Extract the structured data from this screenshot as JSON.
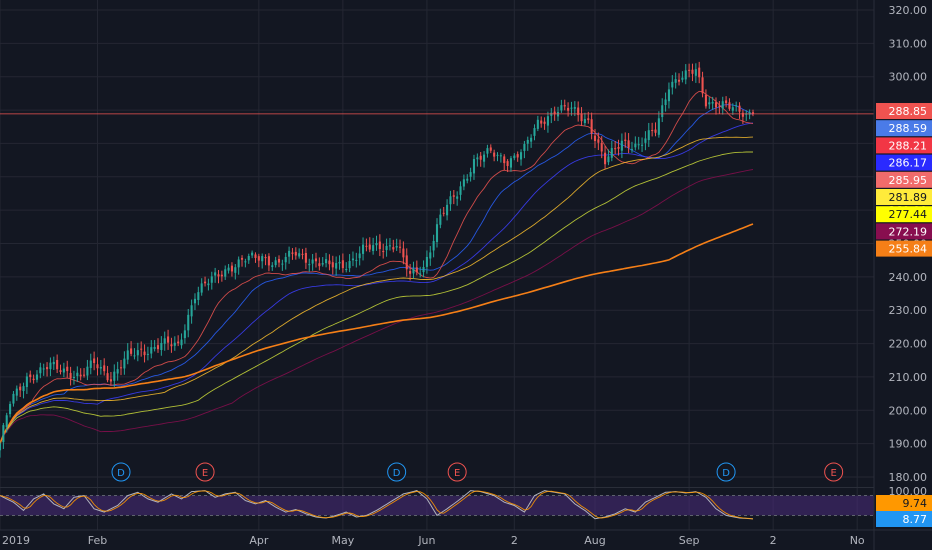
{
  "chart_data": {
    "type": "candlestick",
    "title": "",
    "ylim": [
      177,
      323
    ],
    "y_ticks": [
      180,
      190,
      200,
      210,
      220,
      230,
      240,
      250,
      260,
      270,
      280,
      290,
      300,
      310,
      320
    ],
    "y_tick_labels": [
      "180.00",
      "190.00",
      "200.00",
      "210.00",
      "220.00",
      "230.00",
      "240.00",
      "250.00",
      "260.00",
      "270.00",
      "280.00",
      "290.00",
      "300.00",
      "310.00",
      "320.00"
    ],
    "x_ticks": [
      {
        "label": "2019",
        "day": 0
      },
      {
        "label": "Feb",
        "day": 29
      },
      {
        "label": "Apr",
        "day": 77
      },
      {
        "label": "May",
        "day": 102
      },
      {
        "label": "Jun",
        "day": 127
      },
      {
        "label": "2",
        "day": 153
      },
      {
        "label": "Aug",
        "day": 177
      },
      {
        "label": "Sep",
        "day": 205
      },
      {
        "label": "2",
        "day": 230
      },
      {
        "label": "No",
        "day": 255
      }
    ],
    "price_anchors": [
      [
        0,
        190
      ],
      [
        3,
        202
      ],
      [
        8,
        210
      ],
      [
        15,
        213
      ],
      [
        20,
        212
      ],
      [
        24,
        210
      ],
      [
        28,
        214
      ],
      [
        33,
        210
      ],
      [
        38,
        216
      ],
      [
        43,
        218
      ],
      [
        48,
        220
      ],
      [
        53,
        219
      ],
      [
        58,
        235
      ],
      [
        63,
        239
      ],
      [
        68,
        243
      ],
      [
        73,
        245
      ],
      [
        78,
        246
      ],
      [
        83,
        244
      ],
      [
        88,
        247
      ],
      [
        93,
        245
      ],
      [
        98,
        243
      ],
      [
        103,
        244
      ],
      [
        108,
        248
      ],
      [
        113,
        249
      ],
      [
        118,
        250
      ],
      [
        122,
        240
      ],
      [
        126,
        243
      ],
      [
        131,
        258
      ],
      [
        136,
        265
      ],
      [
        141,
        275
      ],
      [
        146,
        277
      ],
      [
        151,
        275
      ],
      [
        156,
        278
      ],
      [
        160,
        286
      ],
      [
        165,
        290
      ],
      [
        170,
        290
      ],
      [
        175,
        287
      ],
      [
        180,
        274
      ],
      [
        185,
        281
      ],
      [
        190,
        279
      ],
      [
        195,
        284
      ],
      [
        199,
        298
      ],
      [
        204,
        300
      ],
      [
        207,
        302
      ],
      [
        210,
        293
      ],
      [
        215,
        291
      ],
      [
        220,
        290
      ],
      [
        224,
        289
      ]
    ],
    "moving_averages": [
      {
        "label": "288.59",
        "value": 288.59,
        "color": "#2962ff",
        "period": 20
      },
      {
        "label": "286.17",
        "value": 286.17,
        "color": "#3d3fff",
        "period": 30
      },
      {
        "label": "285.95",
        "value": 285.95,
        "color": "#ef5350",
        "period": 10
      },
      {
        "label": "281.89",
        "value": 281.89,
        "color": "#fbc02d",
        "period": 50
      },
      {
        "label": "277.44",
        "value": 277.44,
        "color": "#cddc39",
        "period": 60
      },
      {
        "label": "272.19",
        "value": 272.19,
        "color": "#880e4f",
        "period": 70
      },
      {
        "label": "255.84",
        "value": 255.84,
        "color": "#f57f17",
        "period": 200
      }
    ],
    "last_price": {
      "label": "288.85",
      "value": 288.85
    },
    "secondary_tag": {
      "label": "288.21",
      "value": 288.21
    },
    "events": [
      {
        "label": "D",
        "day": 36,
        "type": "dividend"
      },
      {
        "label": "E",
        "day": 61,
        "type": "earnings"
      },
      {
        "label": "D",
        "day": 118,
        "type": "dividend"
      },
      {
        "label": "E",
        "day": 136,
        "type": "earnings"
      },
      {
        "label": "D",
        "day": 216,
        "type": "dividend"
      },
      {
        "label": "E",
        "day": 248,
        "type": "earnings"
      }
    ],
    "oscillator": {
      "type": "stochastic",
      "upper_band": 100,
      "ticks": [
        {
          "label": "100.00",
          "value": 100
        }
      ],
      "k_value": {
        "label": "9.74",
        "value": 9.74
      },
      "d_value": {
        "label": "8.77",
        "value": 8.77
      },
      "anchors": [
        [
          0,
          80
        ],
        [
          4,
          60
        ],
        [
          7,
          35
        ],
        [
          10,
          70
        ],
        [
          13,
          85
        ],
        [
          16,
          55
        ],
        [
          19,
          40
        ],
        [
          22,
          75
        ],
        [
          25,
          80
        ],
        [
          28,
          40
        ],
        [
          31,
          30
        ],
        [
          35,
          50
        ],
        [
          38,
          80
        ],
        [
          41,
          90
        ],
        [
          44,
          70
        ],
        [
          47,
          60
        ],
        [
          51,
          85
        ],
        [
          54,
          70
        ],
        [
          57,
          92
        ],
        [
          61,
          95
        ],
        [
          64,
          75
        ],
        [
          67,
          85
        ],
        [
          70,
          90
        ],
        [
          73,
          65
        ],
        [
          76,
          55
        ],
        [
          79,
          65
        ],
        [
          82,
          45
        ],
        [
          85,
          30
        ],
        [
          88,
          38
        ],
        [
          91,
          25
        ],
        [
          94,
          15
        ],
        [
          97,
          12
        ],
        [
          100,
          20
        ],
        [
          103,
          30
        ],
        [
          106,
          15
        ],
        [
          109,
          20
        ],
        [
          112,
          35
        ],
        [
          116,
          60
        ],
        [
          120,
          85
        ],
        [
          124,
          95
        ],
        [
          127,
          70
        ],
        [
          130,
          20
        ],
        [
          133,
          40
        ],
        [
          137,
          70
        ],
        [
          140,
          95
        ],
        [
          143,
          92
        ],
        [
          147,
          80
        ],
        [
          150,
          60
        ],
        [
          153,
          50
        ],
        [
          156,
          30
        ],
        [
          159,
          80
        ],
        [
          162,
          95
        ],
        [
          165,
          90
        ],
        [
          168,
          85
        ],
        [
          171,
          55
        ],
        [
          174,
          35
        ],
        [
          177,
          10
        ],
        [
          180,
          15
        ],
        [
          183,
          25
        ],
        [
          186,
          40
        ],
        [
          189,
          30
        ],
        [
          192,
          60
        ],
        [
          195,
          75
        ],
        [
          198,
          90
        ],
        [
          201,
          92
        ],
        [
          204,
          88
        ],
        [
          207,
          92
        ],
        [
          210,
          75
        ],
        [
          213,
          40
        ],
        [
          216,
          20
        ],
        [
          220,
          12
        ],
        [
          224,
          9.74
        ]
      ]
    },
    "colors": {
      "background": "#131722",
      "up": "#26a69a",
      "down": "#ef5350",
      "grid": "#242733",
      "axis_text": "#b2b5be",
      "last_price_line": "#ef5350",
      "oscillator_band": "#4a2b7b"
    }
  }
}
